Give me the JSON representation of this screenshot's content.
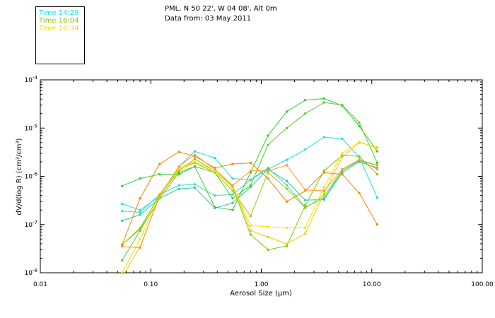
{
  "header": {
    "location": "PML, N 50 22', W 04 08', Alt 0m",
    "date": "Data from: 03 May 2011"
  },
  "legend": [
    {
      "label": "Time 14:29",
      "color": "#22dddd"
    },
    {
      "label": "Time 16:04",
      "color": "#88cc00"
    },
    {
      "label": "Time 16:34",
      "color": "#eedd00"
    }
  ],
  "chart_data": {
    "type": "line",
    "xscale": "log",
    "yscale": "log",
    "xlim": [
      0.01,
      100
    ],
    "ylim": [
      1e-08,
      0.0001
    ],
    "xlabel": "Aerosol Size (μm)",
    "ylabel": "dV/d(log R) (cm³/cm³)",
    "xticks": [
      {
        "value": 0.01,
        "label": "0.01"
      },
      {
        "value": 0.1,
        "label": "0.10"
      },
      {
        "value": 1,
        "label": "1.00"
      },
      {
        "value": 10,
        "label": "10.00"
      },
      {
        "value": 100,
        "label": "100.00"
      }
    ],
    "yticks": [
      {
        "value": 1e-08,
        "base": "10",
        "exp": "-8"
      },
      {
        "value": 1e-07,
        "base": "10",
        "exp": "-7"
      },
      {
        "value": 1e-06,
        "base": "10",
        "exp": "-6"
      },
      {
        "value": 1e-05,
        "base": "10",
        "exp": "-5"
      },
      {
        "value": 0.0001,
        "base": "10",
        "exp": "-4"
      }
    ],
    "x": [
      0.055,
      0.08,
      0.12,
      0.18,
      0.25,
      0.38,
      0.55,
      0.8,
      1.15,
      1.7,
      2.5,
      3.7,
      5.4,
      7.7,
      11.2
    ],
    "series": [
      {
        "color": "#22dddd",
        "values": [
          2.7e-07,
          2e-07,
          3.8e-07,
          1.6e-06,
          3.3e-06,
          2.4e-06,
          9e-07,
          8.5e-07,
          1.4e-06,
          2.2e-06,
          3.6e-06,
          6.5e-06,
          6e-06,
          2.5e-06,
          3.6e-07
        ]
      },
      {
        "color": "#33ddbb",
        "values": [
          1.9e-07,
          1.8e-07,
          4.2e-07,
          6.5e-07,
          6.8e-07,
          4e-07,
          4.2e-07,
          8.5e-07,
          1.5e-06,
          6.5e-07,
          2.3e-07,
          3.5e-07,
          1.3e-06,
          2.1e-06,
          1.7e-06
        ]
      },
      {
        "color": "#22ccaa",
        "values": [
          1.2e-07,
          1.6e-07,
          3.5e-07,
          5.5e-07,
          5.8e-07,
          2.2e-07,
          2.8e-07,
          6e-07,
          1.4e-06,
          8e-07,
          3.2e-07,
          3.3e-07,
          1.2e-06,
          2e-06,
          1.5e-06
        ]
      },
      {
        "color": "#33cc33",
        "values": [
          6.3e-07,
          9e-07,
          1.1e-06,
          1.1e-06,
          1.6e-06,
          2.3e-07,
          2e-07,
          1.2e-06,
          7e-06,
          2.2e-05,
          3.8e-05,
          4.1e-05,
          2.9e-05,
          1.1e-05,
          3.3e-06
        ]
      },
      {
        "color": "#55cc22",
        "values": [
          1.8e-08,
          7.5e-08,
          3.5e-07,
          1.2e-06,
          1.6e-06,
          1.2e-06,
          3.5e-07,
          6.5e-07,
          4.5e-06,
          1e-05,
          2e-05,
          3.4e-05,
          3e-05,
          1.3e-05,
          1.9e-06
        ]
      },
      {
        "color": "#77cc00",
        "values": [
          3.8e-08,
          8.5e-08,
          4e-07,
          1.3e-06,
          2.3e-06,
          1.3e-06,
          6e-07,
          6.2e-08,
          3e-08,
          3.6e-08,
          2.5e-07,
          1.3e-06,
          2.7e-06,
          2.6e-06,
          1.1e-06
        ]
      },
      {
        "color": "#99cc00",
        "values": [
          3.8e-08,
          8e-08,
          4.2e-07,
          1.4e-06,
          1.9e-06,
          1.2e-06,
          5e-07,
          1.5e-07,
          1.2e-06,
          5.5e-07,
          2.2e-07,
          4e-07,
          1.3e-06,
          2.2e-06,
          1.7e-06
        ]
      },
      {
        "color": "#eecc00",
        "values": [
          8e-09,
          3.5e-08,
          3.8e-07,
          1.5e-06,
          2e-06,
          1.3e-06,
          6.5e-07,
          7.5e-08,
          5.5e-08,
          4e-08,
          6.5e-08,
          4.5e-07,
          2.5e-06,
          5e-06,
          4e-06
        ]
      },
      {
        "color": "#ffdd00",
        "values": [
          1e-08,
          5e-08,
          3.9e-07,
          1.4e-06,
          2e-06,
          1.3e-06,
          6.3e-07,
          9.5e-08,
          9e-08,
          8.6e-08,
          8.6e-08,
          6e-07,
          3e-06,
          5.2e-06,
          3.8e-06
        ]
      },
      {
        "color": "#ee8800",
        "values": [
          3.8e-08,
          3.5e-07,
          1.8e-06,
          3.2e-06,
          2.6e-06,
          1.5e-06,
          1.8e-06,
          1.9e-06,
          9e-07,
          3e-07,
          5e-07,
          1.2e-06,
          1.1e-06,
          4.5e-07,
          1e-07
        ]
      },
      {
        "color": "#ff9922",
        "values": [
          3.5e-08,
          3.3e-08,
          4e-07,
          1.6e-06,
          2.8e-06,
          1.4e-06,
          6.5e-07,
          1.3e-06,
          1.3e-06,
          1.7e-06,
          5.2e-07,
          5e-07,
          1.4e-06,
          2.2e-06,
          1.4e-06
        ]
      }
    ]
  }
}
